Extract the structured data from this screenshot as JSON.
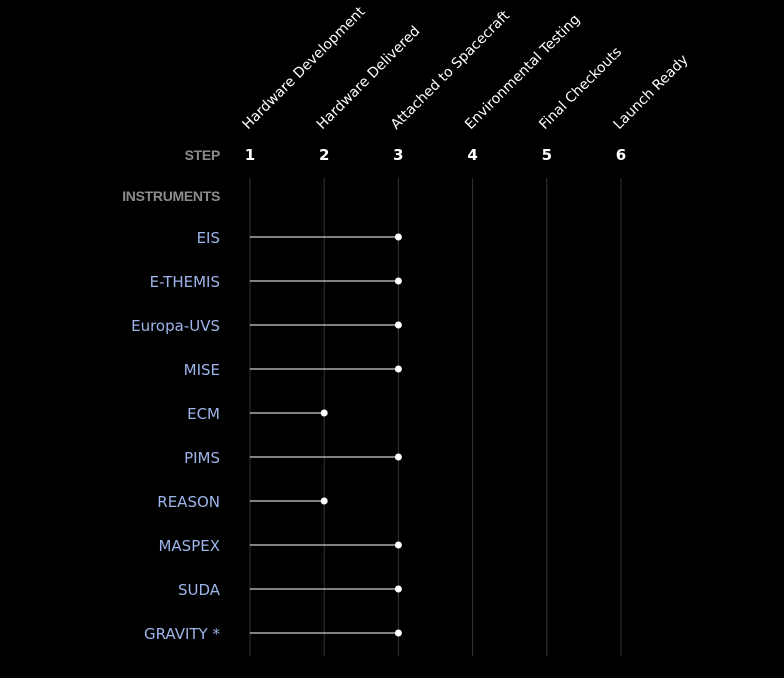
{
  "colors": {
    "background": "#000000",
    "gridline": "#333333",
    "stem": "#ffffff",
    "marker": "#ffffff",
    "instrument_label": "#9db5ea",
    "header_label": "#8c8c8c"
  },
  "header": {
    "step_label": "STEP",
    "instruments_label": "INSTRUMENTS"
  },
  "chart_data": {
    "type": "lollipop",
    "stages": [
      {
        "step": "1",
        "name": "Hardware Development"
      },
      {
        "step": "2",
        "name": "Hardware Delivered"
      },
      {
        "step": "3",
        "name": "Attached to Spacecraft"
      },
      {
        "step": "4",
        "name": "Environmental Testing"
      },
      {
        "step": "5",
        "name": "Final Checkouts"
      },
      {
        "step": "6",
        "name": "Launch Ready"
      }
    ],
    "xlim": [
      1,
      6
    ],
    "grid": true,
    "instruments": [
      {
        "name": "EIS",
        "value": 3
      },
      {
        "name": "E-THEMIS",
        "value": 3
      },
      {
        "name": "Europa-UVS",
        "value": 3
      },
      {
        "name": "MISE",
        "value": 3
      },
      {
        "name": "ECM",
        "value": 2
      },
      {
        "name": "PIMS",
        "value": 3
      },
      {
        "name": "REASON",
        "value": 2
      },
      {
        "name": "MASPEX",
        "value": 3
      },
      {
        "name": "SUDA",
        "value": 3
      },
      {
        "name": "GRAVITY *",
        "value": 3
      }
    ]
  }
}
